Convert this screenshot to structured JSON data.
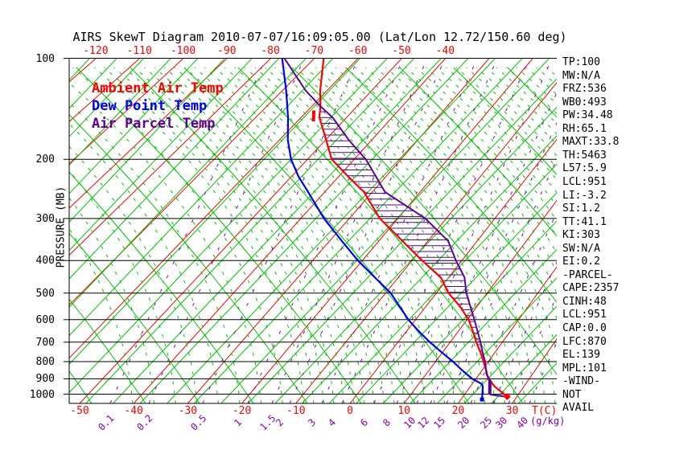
{
  "title": "AIRS SkewT Diagram 2010-07-07/16:09:05.00 (Lat/Lon 12.72/150.60 deg)",
  "legend": {
    "ambient": "Ambient Air Temp",
    "dew": "Dew Point Temp",
    "parcel": "Air Parcel Temp"
  },
  "colors": {
    "ambient": "#ff0000",
    "dew": "#0000f0",
    "parcel": "#5c0096",
    "isotherm": "#ff0000",
    "adiabat": "#00c300",
    "mixing": "#8500b8",
    "axis": "#000000"
  },
  "axes": {
    "pressure_unit": "PRESSURE (MB)",
    "pressure_ticks": [
      "100",
      "200",
      "300",
      "400",
      "500",
      "600",
      "700",
      "800",
      "900",
      "1000"
    ],
    "top_ticks": [
      "-120",
      "-110",
      "-100",
      "-90",
      "-80",
      "-70",
      "-60",
      "-50",
      "-40"
    ],
    "bottom_ticks": [
      "-50",
      "-40",
      "-30",
      "-20",
      "-10",
      "0",
      "10",
      "20",
      "30"
    ],
    "temp_unit": "T(C)",
    "mixing_unit": "(g/kg)"
  },
  "info_panel": {
    "lines": [
      "TP:100",
      "MW:N/A",
      "FRZ:536",
      "WB0:493",
      "PW:34.48",
      "RH:65.1",
      "MAXT:33.8",
      "TH:5463",
      "L57:5.9",
      "LCL:951",
      "LI:-3.2",
      "SI:1.2",
      "TT:41.1",
      "KI:303",
      "SW:N/A",
      "EI:0.2",
      "-PARCEL-",
      "CAPE:2357",
      "CINH:48",
      "LCL:951",
      "CAP:0.0",
      "LFC:870",
      "EL:139",
      "MPL:101",
      "-WIND-",
      "NOT",
      "AVAIL"
    ]
  },
  "chart_data": {
    "type": "line",
    "title": "AIRS SkewT Diagram 2010-07-07/16:09:05.00 (Lat/Lon 12.72/150.60 deg)",
    "xlabel": "T(C)",
    "ylabel": "PRESSURE (MB)",
    "y_scale": "log",
    "y_range_mb": [
      100,
      1050
    ],
    "x_top_labels_c": [
      -120,
      -110,
      -100,
      -90,
      -80,
      -70,
      -60,
      -50,
      -40
    ],
    "x_bottom_labels_c": [
      -50,
      -40,
      -30,
      -20,
      -10,
      0,
      10,
      20,
      30
    ],
    "grid": {
      "isotherms_c": [
        -120,
        -110,
        -100,
        -90,
        -80,
        -70,
        -60,
        -50,
        -40,
        -30,
        -20,
        -10,
        0,
        10,
        20,
        30,
        40
      ],
      "legend_note": "red=isotherms, green=adiabats (solid) and saturation adiabats (dashed), purple dashed=mixing ratio"
    },
    "mixing_lines": [
      {
        "label": "0.1",
        "x": 137
      },
      {
        "label": "0.2",
        "x": 185
      },
      {
        "label": "0.5",
        "x": 252
      },
      {
        "label": "1",
        "x": 308
      },
      {
        "label": "1.5",
        "x": 338
      },
      {
        "label": "2",
        "x": 360
      },
      {
        "label": "3",
        "x": 400
      },
      {
        "label": "4",
        "x": 425
      },
      {
        "label": "6",
        "x": 465
      },
      {
        "label": "8",
        "x": 493
      },
      {
        "label": "10",
        "x": 518
      },
      {
        "label": "12",
        "x": 535
      },
      {
        "label": "15",
        "x": 555
      },
      {
        "label": "20",
        "x": 585
      },
      {
        "label": "25",
        "x": 613
      },
      {
        "label": "30",
        "x": 632
      },
      {
        "label": "40",
        "x": 658
      }
    ],
    "series": [
      {
        "name": "Ambient Air Temp",
        "color": "#ff0000",
        "width": 2.2,
        "points_p_t": [
          [
            100,
            -67.9
          ],
          [
            125,
            -61.5
          ],
          [
            139,
            -58.1
          ],
          [
            150,
            -56.0
          ],
          [
            175,
            -49.9
          ],
          [
            200,
            -44.8
          ],
          [
            225,
            -38.0
          ],
          [
            250,
            -31.8
          ],
          [
            300,
            -23.7
          ],
          [
            350,
            -15.2
          ],
          [
            400,
            -8.0
          ],
          [
            450,
            -1.5
          ],
          [
            500,
            2.4
          ],
          [
            550,
            6.8
          ],
          [
            600,
            10.3
          ],
          [
            650,
            12.8
          ],
          [
            700,
            15.0
          ],
          [
            750,
            17.2
          ],
          [
            800,
            19.1
          ],
          [
            850,
            20.8
          ],
          [
            900,
            22.3
          ],
          [
            950,
            24.6
          ],
          [
            1000,
            27.3
          ],
          [
            1017,
            28.2
          ]
        ]
      },
      {
        "name": "Dew Point Temp",
        "color": "#0000f0",
        "width": 2.2,
        "points_p_t": [
          [
            100,
            -77.4
          ],
          [
            125,
            -69.1
          ],
          [
            150,
            -62.9
          ],
          [
            175,
            -58.2
          ],
          [
            200,
            -53.5
          ],
          [
            225,
            -48.5
          ],
          [
            250,
            -43.5
          ],
          [
            300,
            -35.2
          ],
          [
            350,
            -27.5
          ],
          [
            400,
            -20.9
          ],
          [
            450,
            -14.6
          ],
          [
            500,
            -9.0
          ],
          [
            550,
            -5.0
          ],
          [
            600,
            -1.4
          ],
          [
            650,
            2.4
          ],
          [
            700,
            6.1
          ],
          [
            750,
            9.8
          ],
          [
            800,
            13.3
          ],
          [
            850,
            16.3
          ],
          [
            900,
            19.3
          ],
          [
            930,
            21.6
          ],
          [
            947,
            22.3
          ],
          [
            1037,
            23.9
          ]
        ]
      },
      {
        "name": "Air Parcel Temp",
        "color": "#5c0096",
        "width": 2,
        "points_p_t": [
          [
            100,
            -76.9
          ],
          [
            125,
            -64.7
          ],
          [
            139,
            -58.1
          ],
          [
            150,
            -53.1
          ],
          [
            175,
            -45.0
          ],
          [
            200,
            -37.5
          ],
          [
            250,
            -27.4
          ],
          [
            300,
            -14.3
          ],
          [
            350,
            -5.9
          ],
          [
            400,
            -1.2
          ],
          [
            450,
            3.2
          ],
          [
            500,
            5.9
          ],
          [
            550,
            8.8
          ],
          [
            600,
            11.4
          ],
          [
            650,
            13.7
          ],
          [
            700,
            15.8
          ],
          [
            750,
            17.6
          ],
          [
            800,
            19.4
          ],
          [
            870,
            21.3
          ],
          [
            908,
            22.8
          ],
          [
            1003,
            24.8
          ],
          [
            1017,
            27.8
          ]
        ]
      }
    ],
    "cape_hatch_between": [
      "Air Parcel Temp",
      "Ambient Air Temp"
    ],
    "levels_mb": {
      "el": 139,
      "lfc": 870,
      "lcl": 951
    },
    "markers": [
      {
        "type": "segment",
        "color": "#ff0000",
        "width": 4,
        "points_p_t": [
          [
            143,
            -58.7
          ],
          [
            154,
            -56.5
          ]
        ]
      },
      {
        "type": "segment",
        "color": "#5c0096",
        "width": 4,
        "points_p_t": [
          [
            908,
            22.8
          ],
          [
            1003,
            24.7
          ]
        ]
      },
      {
        "type": "diamond",
        "color": "#ff0000",
        "p_t": [
          1017,
          28.2
        ]
      },
      {
        "type": "square",
        "color": "#0000f0",
        "p_t": [
          1037,
          23.9
        ]
      }
    ]
  }
}
